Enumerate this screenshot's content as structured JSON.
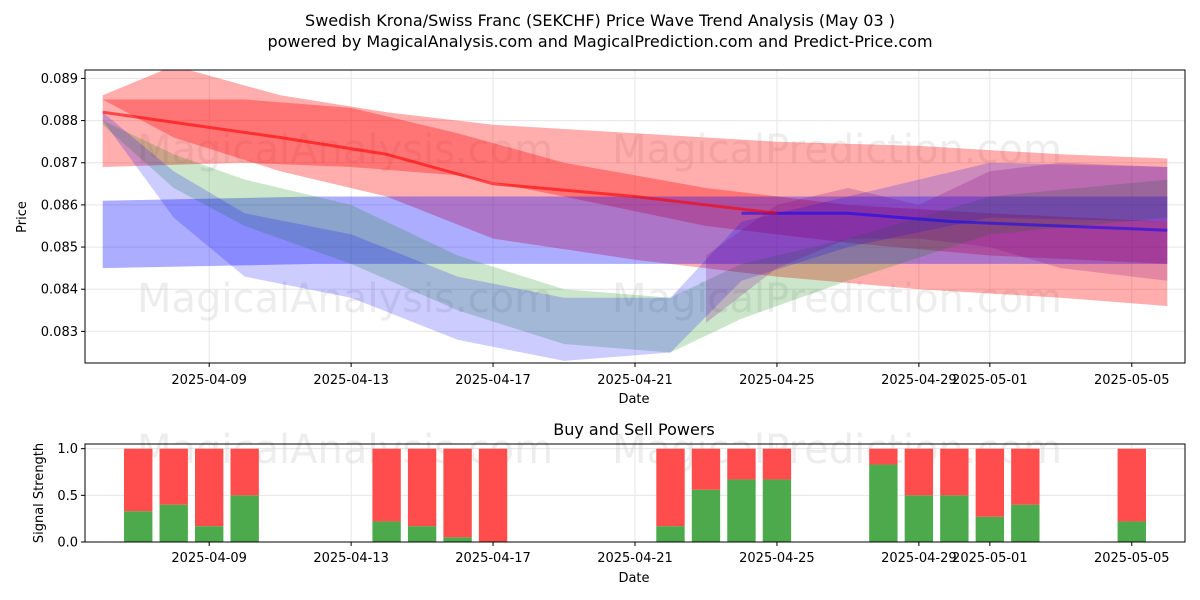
{
  "chart_data": [
    {
      "type": "area",
      "title": "Swedish Krona/Swiss Franc (SEKCHF) Price Wave Trend Analysis (May 03 )",
      "subtitle": "powered by MagicalAnalysis.com and MagicalPrediction.com and Predict-Price.com",
      "xlabel": "Date",
      "ylabel": "Price",
      "xlim": [
        "2025-04-05T12:00",
        "2025-05-06T12:00"
      ],
      "ylim": [
        0.08225,
        0.0892
      ],
      "x_ticks": [
        "2025-04-09",
        "2025-04-13",
        "2025-04-17",
        "2025-04-21",
        "2025-04-25",
        "2025-04-29",
        "2025-05-01",
        "2025-05-05"
      ],
      "y_ticks": [
        0.083,
        0.084,
        0.085,
        0.086,
        0.087,
        0.088,
        0.089
      ],
      "grid": true,
      "watermarks": [
        "MagicalAnalysis.com",
        "MagicalPrediction.com"
      ],
      "bands": [
        {
          "color": "#ff0000",
          "opacity": 0.32,
          "x": [
            "2025-04-06",
            "2025-04-08",
            "2025-04-11",
            "2025-04-14",
            "2025-04-17",
            "2025-04-21",
            "2025-04-25",
            "2025-04-29",
            "2025-05-03",
            "2025-05-06"
          ],
          "upper": [
            0.0886,
            0.0893,
            0.0886,
            0.0882,
            0.0879,
            0.0877,
            0.0875,
            0.0874,
            0.0872,
            0.0871
          ],
          "lower": [
            0.0885,
            0.0876,
            0.0868,
            0.0862,
            0.0852,
            0.0847,
            0.0843,
            0.084,
            0.0838,
            0.0836
          ]
        },
        {
          "color": "#ff0000",
          "opacity": 0.32,
          "x": [
            "2025-04-06",
            "2025-04-10",
            "2025-04-13",
            "2025-04-16",
            "2025-04-19",
            "2025-04-23",
            "2025-04-27",
            "2025-05-01",
            "2025-05-06"
          ],
          "upper": [
            0.0885,
            0.0885,
            0.0883,
            0.0877,
            0.087,
            0.0864,
            0.086,
            0.0858,
            0.0856
          ],
          "lower": [
            0.0869,
            0.087,
            0.0869,
            0.0867,
            0.0862,
            0.0855,
            0.0851,
            0.0848,
            0.0846
          ]
        },
        {
          "color": "#0000ff",
          "opacity": 0.32,
          "x": [
            "2025-04-06",
            "2025-04-12",
            "2025-04-18",
            "2025-04-24",
            "2025-04-30",
            "2025-05-06"
          ],
          "upper": [
            0.0861,
            0.0862,
            0.0862,
            0.0862,
            0.0862,
            0.0862
          ],
          "lower": [
            0.0845,
            0.0846,
            0.0846,
            0.0846,
            0.0846,
            0.0846
          ]
        },
        {
          "color": "#008000",
          "opacity": 0.2,
          "x": [
            "2025-04-06",
            "2025-04-08",
            "2025-04-10",
            "2025-04-13",
            "2025-04-16",
            "2025-04-19",
            "2025-04-22",
            "2025-04-24",
            "2025-04-27",
            "2025-05-01",
            "2025-05-06"
          ],
          "upper": [
            0.088,
            0.0872,
            0.0866,
            0.086,
            0.0848,
            0.084,
            0.0838,
            0.0846,
            0.0852,
            0.0862,
            0.0866
          ],
          "lower": [
            0.0879,
            0.0864,
            0.0855,
            0.0846,
            0.0835,
            0.0827,
            0.0825,
            0.0833,
            0.0842,
            0.0853,
            0.0857
          ]
        },
        {
          "color": "#0000ff",
          "opacity": 0.2,
          "x": [
            "2025-04-06",
            "2025-04-08",
            "2025-04-10",
            "2025-04-13",
            "2025-04-16",
            "2025-04-19",
            "2025-04-22",
            "2025-04-24",
            "2025-04-27",
            "2025-05-01",
            "2025-05-06"
          ],
          "upper": [
            0.0882,
            0.0868,
            0.0858,
            0.0853,
            0.0843,
            0.0838,
            0.0838,
            0.0856,
            0.0862,
            0.087,
            0.0869
          ],
          "lower": [
            0.088,
            0.0857,
            0.0843,
            0.0838,
            0.0828,
            0.0823,
            0.0825,
            0.0842,
            0.085,
            0.0857,
            0.0856
          ]
        },
        {
          "color": "#800080",
          "opacity": 0.22,
          "x": [
            "2025-04-23",
            "2025-04-25",
            "2025-04-27",
            "2025-04-29",
            "2025-05-01",
            "2025-05-03",
            "2025-05-06"
          ],
          "upper": [
            0.0848,
            0.086,
            0.0864,
            0.086,
            0.0868,
            0.087,
            0.0869
          ],
          "lower": [
            0.0832,
            0.0845,
            0.0852,
            0.0852,
            0.085,
            0.0845,
            0.0842
          ]
        }
      ],
      "lines": [
        {
          "color": "#0000ff",
          "opacity": 0.5,
          "x": [
            "2025-04-24",
            "2025-04-27",
            "2025-04-30",
            "2025-05-03",
            "2025-05-06"
          ],
          "y": [
            0.0858,
            0.0858,
            0.0856,
            0.0855,
            0.0854
          ]
        },
        {
          "color": "#ff0000",
          "opacity": 0.6,
          "x": [
            "2025-04-06",
            "2025-04-11",
            "2025-04-14",
            "2025-04-17",
            "2025-04-21",
            "2025-04-25"
          ],
          "y": [
            0.0882,
            0.0876,
            0.0872,
            0.0865,
            0.0862,
            0.0858
          ]
        }
      ]
    },
    {
      "type": "bar",
      "title": "Buy and Sell Powers",
      "xlabel": "Date",
      "ylabel": "Signal Strength",
      "ylim": [
        0,
        1.05
      ],
      "y_ticks": [
        0.0,
        0.5,
        1.0
      ],
      "y_tick_labels": [
        "0.0",
        "0.5",
        "1.0"
      ],
      "x_ticks": [
        "2025-04-09",
        "2025-04-13",
        "2025-04-17",
        "2025-04-21",
        "2025-04-25",
        "2025-04-29",
        "2025-05-01",
        "2025-05-05"
      ],
      "grid": true,
      "colors": {
        "buy": "#4caa4c",
        "sell": "#ff4d4d"
      },
      "watermarks": [
        "MagicalAnalysis.com",
        "MagicalPrediction.com"
      ],
      "categories": [
        "2025-04-07",
        "2025-04-08",
        "2025-04-09",
        "2025-04-10",
        "2025-04-14",
        "2025-04-15",
        "2025-04-16",
        "2025-04-17",
        "2025-04-22",
        "2025-04-23",
        "2025-04-24",
        "2025-04-25",
        "2025-04-28",
        "2025-04-29",
        "2025-04-30",
        "2025-05-01",
        "2025-05-02",
        "2025-05-05"
      ],
      "series": [
        {
          "values": [
            0.33,
            0.4,
            0.17,
            0.5,
            0.22,
            0.17,
            0.05,
            0.0,
            0.17,
            0.56,
            0.67,
            0.67,
            0.83,
            0.5,
            0.5,
            0.27,
            0.4,
            0.22
          ]
        },
        {
          "values": [
            0.67,
            0.6,
            0.83,
            0.5,
            0.78,
            0.83,
            0.95,
            1.0,
            0.83,
            0.44,
            0.33,
            0.33,
            0.17,
            0.5,
            0.5,
            0.73,
            0.6,
            0.78
          ]
        }
      ]
    }
  ]
}
